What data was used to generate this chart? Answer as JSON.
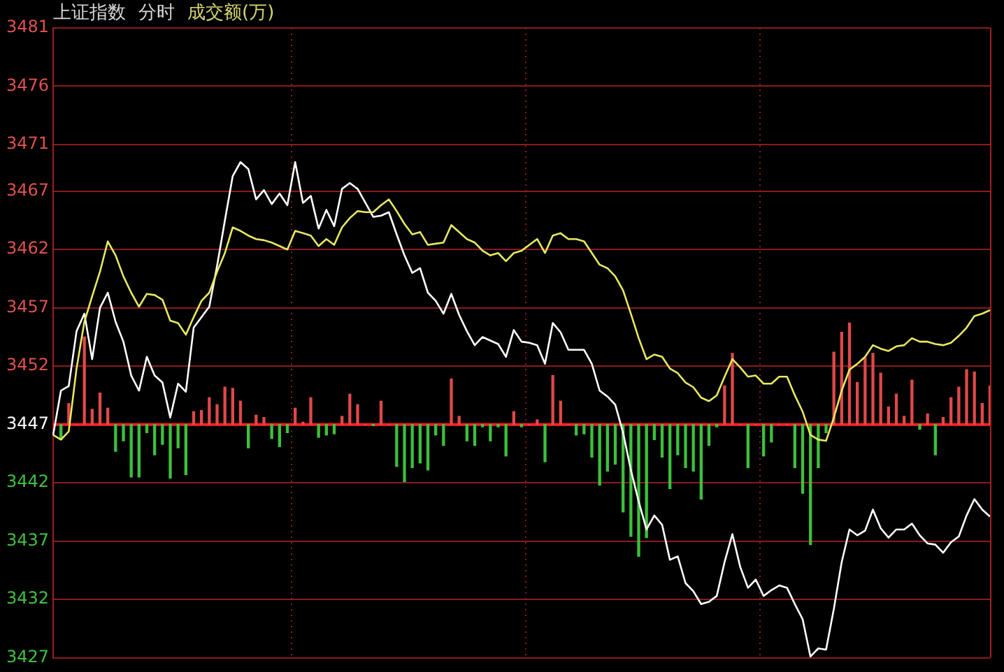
{
  "chart_data": {
    "type": "line",
    "title": "上证指数",
    "subtitle": "分时",
    "annotations": [
      "成交额(万)"
    ],
    "categories": [
      null,
      null,
      null,
      null,
      null,
      null,
      null,
      null,
      null,
      null,
      null,
      null,
      null,
      null,
      null,
      null,
      null,
      null,
      null,
      null,
      null,
      null,
      null,
      null,
      null,
      null,
      null,
      null,
      null,
      null,
      null,
      null,
      null,
      null,
      null,
      null,
      null,
      null,
      null,
      null,
      null,
      null,
      null,
      null,
      null,
      null,
      null,
      null,
      null,
      null,
      null,
      null,
      null,
      null,
      null,
      null,
      null,
      null,
      null,
      null,
      null,
      null,
      null,
      null,
      null,
      null,
      null,
      null,
      null,
      null,
      null,
      null,
      null,
      null,
      null,
      null,
      null,
      null,
      null,
      null,
      null,
      null,
      null,
      null,
      null,
      null,
      null,
      null,
      null,
      null,
      null,
      null,
      null,
      null,
      null,
      null,
      null,
      null,
      null,
      null,
      null,
      null,
      null,
      null,
      null,
      null,
      null,
      null,
      null,
      null,
      null,
      null,
      null,
      null,
      null,
      null,
      null,
      null,
      null,
      null,
      null
    ],
    "ylim": [
      3427,
      3481
    ],
    "yticks": [
      3427,
      3432,
      3437,
      3442,
      3447,
      3452,
      3457,
      3462,
      3467,
      3471,
      3476,
      3481
    ],
    "grid": true,
    "tick_labels": "y",
    "ref_lines": [
      {
        "axis": "y",
        "value": 3447,
        "color": "#ff2020"
      }
    ],
    "series": [
      {
        "type": "bar",
        "values": [
          0,
          -1.3,
          1.8,
          0,
          7.5,
          1.3,
          2.7,
          1.4,
          -2.3,
          -1.4,
          -4.5,
          -4.5,
          -0.7,
          -2.6,
          -1.7,
          -4.6,
          -2.0,
          -4.3,
          1.1,
          1.2,
          2.3,
          1.7,
          3.2,
          3.1,
          2.0,
          -2.0,
          0.8,
          0.6,
          -1.2,
          -1.9,
          -0.7,
          1.4,
          0.2,
          2.3,
          -1.1,
          -0.9,
          -0.8,
          0.7,
          2.6,
          1.7,
          0,
          -0.1,
          2.0,
          0,
          -3.6,
          -4.9,
          -3.7,
          -3.3,
          -3.9,
          -0.9,
          -1.8,
          3.9,
          0.7,
          -1.4,
          -1.8,
          -0.2,
          -1.4,
          -0.2,
          -2.7,
          1.1,
          -0.2,
          0,
          0.4,
          -3.2,
          4.2,
          2.0,
          0,
          -0.9,
          -0.8,
          -2.8,
          -5.2,
          -4.0,
          -3.4,
          -7.5,
          -9.6,
          -11.3,
          -9.7,
          -1.3,
          -2.8,
          -5.5,
          -2.6,
          -3.7,
          -4.0,
          -6.4,
          -1.8,
          -0.2,
          3.3,
          6.1,
          0,
          -3.7,
          0,
          -2.7,
          -1.5,
          0,
          0,
          -3.7,
          -5.9,
          -10.3,
          -3.7,
          -0.7,
          6.2,
          7.9,
          8.7,
          3.6,
          5.7,
          6.1,
          4.4,
          1.5,
          2.6,
          0.7,
          3.8,
          -0.4,
          0.9,
          -2.6,
          0.6,
          2.3,
          3.2,
          4.7,
          4.5,
          1.8,
          3.3
        ],
        "colors": [
          "#e04848",
          "#3cc03c",
          "#e04848",
          "#e04848",
          "#e04848",
          "#e04848",
          "#e04848",
          "#e04848",
          "#3cc03c",
          "#3cc03c",
          "#3cc03c",
          "#3cc03c",
          "#3cc03c",
          "#3cc03c",
          "#3cc03c",
          "#3cc03c",
          "#3cc03c",
          "#3cc03c",
          "#e04848",
          "#e04848",
          "#e04848",
          "#e04848",
          "#e04848",
          "#e04848",
          "#e04848",
          "#3cc03c",
          "#e04848",
          "#e04848",
          "#3cc03c",
          "#3cc03c",
          "#3cc03c",
          "#e04848",
          "#e04848",
          "#e04848",
          "#3cc03c",
          "#3cc03c",
          "#3cc03c",
          "#e04848",
          "#e04848",
          "#e04848",
          "#e04848",
          "#3cc03c",
          "#e04848",
          "#e04848",
          "#3cc03c",
          "#3cc03c",
          "#3cc03c",
          "#3cc03c",
          "#3cc03c",
          "#3cc03c",
          "#3cc03c",
          "#e04848",
          "#e04848",
          "#3cc03c",
          "#3cc03c",
          "#3cc03c",
          "#3cc03c",
          "#3cc03c",
          "#3cc03c",
          "#e04848",
          "#3cc03c",
          "#e04848",
          "#e04848",
          "#3cc03c",
          "#e04848",
          "#e04848",
          "#e04848",
          "#3cc03c",
          "#3cc03c",
          "#3cc03c",
          "#3cc03c",
          "#3cc03c",
          "#3cc03c",
          "#3cc03c",
          "#3cc03c",
          "#3cc03c",
          "#3cc03c",
          "#3cc03c",
          "#3cc03c",
          "#3cc03c",
          "#3cc03c",
          "#3cc03c",
          "#3cc03c",
          "#3cc03c",
          "#3cc03c",
          "#3cc03c",
          "#e04848",
          "#e04848",
          "#e04848",
          "#3cc03c",
          "#e04848",
          "#3cc03c",
          "#3cc03c",
          "#e04848",
          "#e04848",
          "#3cc03c",
          "#3cc03c",
          "#3cc03c",
          "#3cc03c",
          "#3cc03c",
          "#e04848",
          "#e04848",
          "#e04848",
          "#e04848",
          "#e04848",
          "#e04848",
          "#e04848",
          "#e04848",
          "#e04848",
          "#e04848",
          "#e04848",
          "#3cc03c",
          "#e04848",
          "#3cc03c",
          "#e04848",
          "#e04848",
          "#e04848",
          "#e04848",
          "#e04848",
          "#e04848",
          "#e04848"
        ],
        "base": [
          3447,
          3447,
          3447,
          3447,
          3447,
          3447,
          3447,
          3447,
          3447,
          3447,
          3447,
          3447,
          3447,
          3447,
          3447,
          3447,
          3447,
          3447,
          3447,
          3447,
          3447,
          3447,
          3447,
          3447,
          3447,
          3447,
          3447,
          3447,
          3447,
          3447,
          3447,
          3447,
          3447,
          3447,
          3447,
          3447,
          3447,
          3447,
          3447,
          3447,
          3447,
          3447,
          3447,
          3447,
          3447,
          3447,
          3447,
          3447,
          3447,
          3447,
          3447,
          3447,
          3447,
          3447,
          3447,
          3447,
          3447,
          3447,
          3447,
          3447,
          3447,
          3447,
          3447,
          3447,
          3447,
          3447,
          3447,
          3447,
          3447,
          3447,
          3447,
          3447,
          3447,
          3447,
          3447,
          3447,
          3447,
          3447,
          3447,
          3447,
          3447,
          3447,
          3447,
          3447,
          3447,
          3447,
          3447,
          3447,
          3447,
          3447,
          3447,
          3447,
          3447,
          3447,
          3447,
          3447,
          3447,
          3447,
          3447,
          3447,
          3447,
          3447,
          3447,
          3447,
          3447,
          3447,
          3447,
          3447,
          3447,
          3447,
          3447,
          3447,
          3447,
          3447,
          3447,
          3447,
          3447,
          3447,
          3447,
          3447,
          3447
        ]
      },
      {
        "color": "#e8e860",
        "values": [
          3446.1,
          3445.7,
          3446.4,
          3451.8,
          3455.8,
          3458.0,
          3460.1,
          3462.7,
          3461.5,
          3459.7,
          3458.3,
          3457.1,
          3458.2,
          3458.1,
          3457.7,
          3455.9,
          3455.7,
          3454.7,
          3456.2,
          3457.6,
          3458.3,
          3460.1,
          3461.7,
          3463.9,
          3463.6,
          3463.2,
          3462.9,
          3462.8,
          3462.6,
          3462.3,
          3462.0,
          3463.6,
          3463.4,
          3463.2,
          3462.3,
          3462.9,
          3462.4,
          3463.9,
          3464.7,
          3465.3,
          3465.2,
          3465.2,
          3465.8,
          3466.3,
          3465.3,
          3464.2,
          3463.3,
          3463.5,
          3462.4,
          3462.5,
          3462.6,
          3464.1,
          3463.5,
          3462.9,
          3462.6,
          3461.9,
          3461.5,
          3461.7,
          3461.0,
          3461.7,
          3461.9,
          3462.4,
          3462.9,
          3461.7,
          3463.2,
          3463.4,
          3462.9,
          3462.9,
          3462.7,
          3461.7,
          3460.7,
          3460.4,
          3459.7,
          3458.5,
          3456.5,
          3454.4,
          3452.6,
          3453.0,
          3452.8,
          3451.8,
          3451.4,
          3450.6,
          3450.2,
          3449.3,
          3449.0,
          3449.5,
          3451.1,
          3452.6,
          3451.9,
          3451.1,
          3451.2,
          3450.5,
          3450.5,
          3451.1,
          3451.1,
          3449.5,
          3448.1,
          3446.1,
          3445.7,
          3445.6,
          3447.6,
          3449.9,
          3451.7,
          3452.2,
          3452.8,
          3453.8,
          3453.5,
          3453.3,
          3453.7,
          3453.8,
          3454.4,
          3454.1,
          3454.1,
          3453.9,
          3453.8,
          3454.0,
          3454.6,
          3455.3,
          3456.3,
          3456.5,
          3456.8
        ]
      },
      {
        "color": "#ffffff",
        "values": [
          3446.1,
          3449.9,
          3450.3,
          3455.0,
          3456.5,
          3452.6,
          3457.0,
          3458.3,
          3455.8,
          3454.1,
          3451.2,
          3449.9,
          3452.8,
          3451.2,
          3450.6,
          3447.6,
          3450.5,
          3449.8,
          3455.3,
          3456.2,
          3457.1,
          3460.6,
          3464.5,
          3468.3,
          3469.5,
          3468.9,
          3466.3,
          3467.1,
          3465.9,
          3466.8,
          3465.8,
          3469.5,
          3466.0,
          3466.6,
          3463.8,
          3465.4,
          3464.0,
          3467.2,
          3467.7,
          3467.2,
          3466.0,
          3464.8,
          3464.9,
          3465.2,
          3463.3,
          3461.5,
          3460.0,
          3460.4,
          3458.3,
          3457.6,
          3456.5,
          3458.2,
          3456.4,
          3455.0,
          3453.8,
          3454.5,
          3454.2,
          3453.9,
          3452.8,
          3455.1,
          3454.1,
          3454.0,
          3453.8,
          3452.2,
          3455.7,
          3454.9,
          3453.4,
          3453.4,
          3453.4,
          3452.2,
          3449.9,
          3449.4,
          3448.7,
          3446.3,
          3443.1,
          3440.4,
          3438.0,
          3439.2,
          3438.4,
          3435.4,
          3435.7,
          3433.4,
          3432.7,
          3431.6,
          3431.8,
          3432.3,
          3435.2,
          3437.6,
          3434.8,
          3433.0,
          3433.7,
          3432.3,
          3432.8,
          3433.2,
          3433.0,
          3431.6,
          3430.3,
          3427.1,
          3427.8,
          3427.7,
          3431.2,
          3435.2,
          3438.0,
          3437.5,
          3437.9,
          3439.7,
          3438.1,
          3437.3,
          3438.0,
          3438.0,
          3438.5,
          3437.5,
          3436.8,
          3436.7,
          3436.0,
          3436.9,
          3437.4,
          3439.2,
          3440.6,
          3439.7,
          3439.1
        ]
      }
    ]
  }
}
